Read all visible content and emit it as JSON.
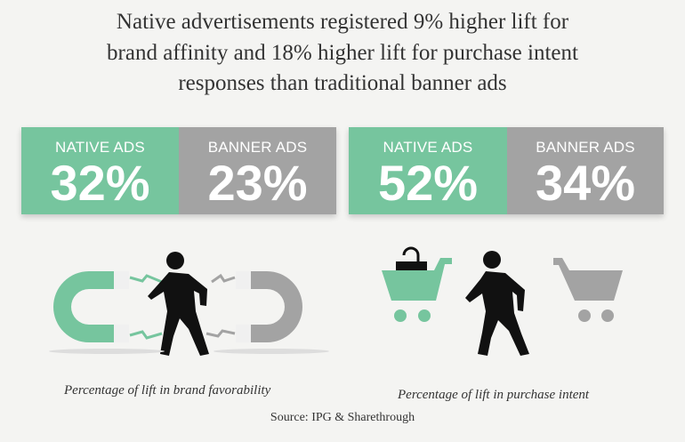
{
  "title": {
    "lines": [
      "Native advertisements registered 9% higher lift for",
      "brand affinity and 18% higher lift for purchase intent",
      "responses than traditional banner ads"
    ]
  },
  "colors": {
    "native": "#76c59e",
    "banner": "#a3a3a3"
  },
  "brand_panel": {
    "native": {
      "label": "NATIVE ADS",
      "value": "32%"
    },
    "banner": {
      "label": "BANNER ADS",
      "value": "23%"
    },
    "icons": [
      "magnet-icon-native",
      "walking-person-icon",
      "magnet-icon-banner"
    ],
    "caption": "Percentage of lift in brand favorability"
  },
  "purchase_panel": {
    "native": {
      "label": "NATIVE ADS",
      "value": "52%"
    },
    "banner": {
      "label": "BANNER ADS",
      "value": "34%"
    },
    "icons": [
      "shopping-cart-with-bag-icon",
      "walking-person-icon",
      "shopping-cart-empty-icon"
    ],
    "caption": "Percentage of lift in purchase intent"
  },
  "source": "Source: IPG & Sharethrough"
}
